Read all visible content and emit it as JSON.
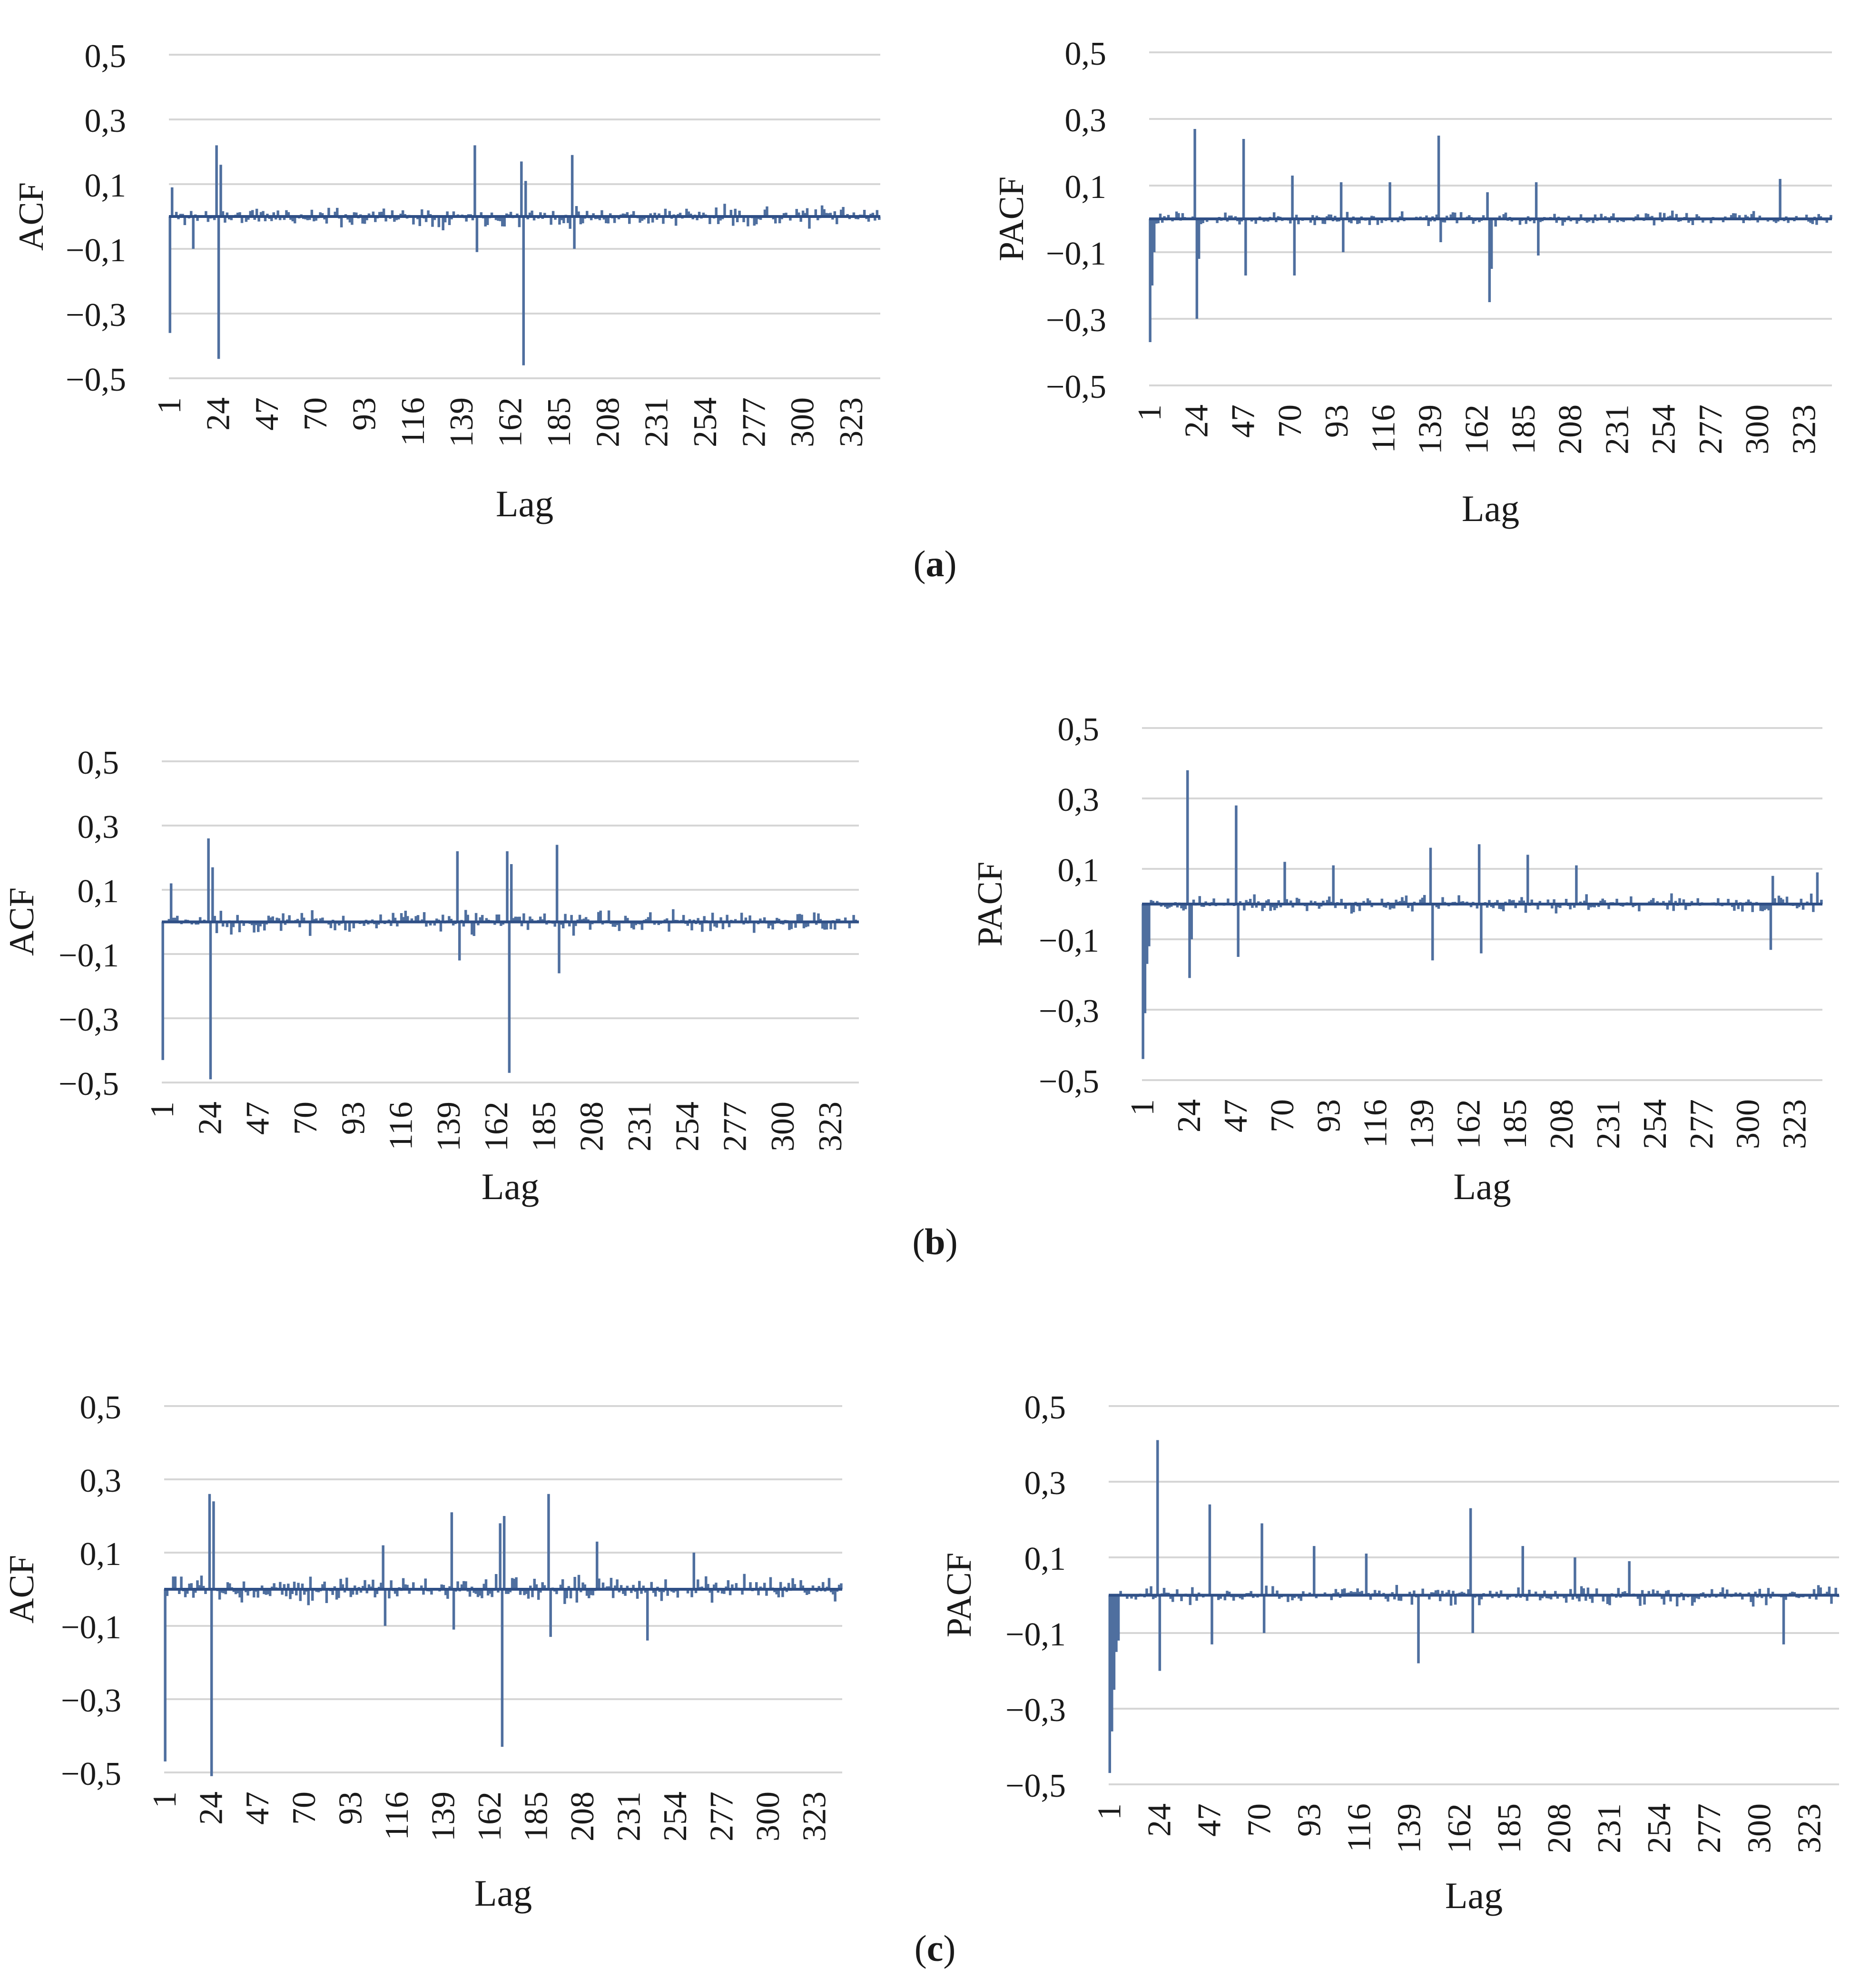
{
  "colors": {
    "bar": "#4f6f9f",
    "baseline": "#2f4f86",
    "grid": "#d6d6d6",
    "text": "#1a1a1a"
  },
  "captions": {
    "a": {
      "open": "(",
      "letter": "a",
      "close": ")"
    },
    "b": {
      "open": "(",
      "letter": "b",
      "close": ")"
    },
    "c": {
      "open": "(",
      "letter": "c",
      "close": ")"
    }
  },
  "chart_data": [
    {
      "id": "a-acf",
      "type": "bar",
      "ylabel": "ACF",
      "xlabel": "Lag",
      "yticks": [
        "0,5",
        "0,3",
        "0,1",
        "−0,1",
        "−0,3",
        "−0,5"
      ],
      "ylim": [
        -0.5,
        0.5
      ],
      "xticks": [
        "1",
        "24",
        "47",
        "70",
        "93",
        "116",
        "139",
        "162",
        "185",
        "208",
        "231",
        "254",
        "277",
        "300",
        "323"
      ],
      "n_lags": 336,
      "noise_amp": 0.045,
      "seed": 11,
      "spikes": [
        [
          1,
          -0.36
        ],
        [
          2,
          0.09
        ],
        [
          12,
          -0.1
        ],
        [
          23,
          0.22
        ],
        [
          24,
          -0.44
        ],
        [
          25,
          0.16
        ],
        [
          145,
          0.22
        ],
        [
          146,
          -0.11
        ],
        [
          167,
          0.17
        ],
        [
          168,
          -0.46
        ],
        [
          169,
          0.11
        ],
        [
          191,
          0.19
        ],
        [
          192,
          -0.1
        ]
      ]
    },
    {
      "id": "a-pacf",
      "type": "bar",
      "ylabel": "PACF",
      "xlabel": "Lag",
      "yticks": [
        "0,5",
        "0,3",
        "0,1",
        "−0,1",
        "−0,3",
        "−0,5"
      ],
      "ylim": [
        -0.5,
        0.5
      ],
      "xticks": [
        "1",
        "24",
        "47",
        "70",
        "93",
        "116",
        "139",
        "162",
        "185",
        "208",
        "231",
        "254",
        "277",
        "300",
        "323"
      ],
      "n_lags": 336,
      "noise_amp": 0.03,
      "seed": 23,
      "spikes": [
        [
          1,
          -0.37
        ],
        [
          2,
          -0.2
        ],
        [
          3,
          -0.1
        ],
        [
          23,
          0.27
        ],
        [
          24,
          -0.3
        ],
        [
          25,
          -0.12
        ],
        [
          47,
          0.24
        ],
        [
          48,
          -0.17
        ],
        [
          71,
          0.13
        ],
        [
          72,
          -0.17
        ],
        [
          95,
          0.11
        ],
        [
          96,
          -0.1
        ],
        [
          119,
          0.11
        ],
        [
          143,
          0.25
        ],
        [
          144,
          -0.07
        ],
        [
          167,
          0.08
        ],
        [
          168,
          -0.25
        ],
        [
          169,
          -0.15
        ],
        [
          191,
          0.11
        ],
        [
          192,
          -0.11
        ],
        [
          311,
          0.12
        ]
      ]
    },
    {
      "id": "b-acf",
      "type": "bar",
      "ylabel": "ACF",
      "xlabel": "Lag",
      "yticks": [
        "0,5",
        "0,3",
        "0,1",
        "−0,1",
        "−0,3",
        "−0,5"
      ],
      "ylim": [
        -0.5,
        0.5
      ],
      "xticks": [
        "1",
        "24",
        "47",
        "70",
        "93",
        "116",
        "139",
        "162",
        "185",
        "208",
        "231",
        "254",
        "277",
        "300",
        "323"
      ],
      "n_lags": 336,
      "noise_amp": 0.05,
      "seed": 37,
      "spikes": [
        [
          1,
          -0.43
        ],
        [
          5,
          0.12
        ],
        [
          23,
          0.26
        ],
        [
          24,
          -0.49
        ],
        [
          25,
          0.17
        ],
        [
          143,
          0.22
        ],
        [
          144,
          -0.12
        ],
        [
          167,
          0.22
        ],
        [
          168,
          -0.47
        ],
        [
          169,
          0.18
        ],
        [
          191,
          0.24
        ],
        [
          192,
          -0.16
        ]
      ]
    },
    {
      "id": "b-pacf",
      "type": "bar",
      "ylabel": "PACF",
      "xlabel": "Lag",
      "yticks": [
        "0,5",
        "0,3",
        "0,1",
        "−0,1",
        "−0,3",
        "−0,5"
      ],
      "ylim": [
        -0.5,
        0.5
      ],
      "xticks": [
        "1",
        "24",
        "47",
        "70",
        "93",
        "116",
        "139",
        "162",
        "185",
        "208",
        "231",
        "254",
        "277",
        "300",
        "323"
      ],
      "n_lags": 336,
      "noise_amp": 0.035,
      "seed": 41,
      "spikes": [
        [
          1,
          -0.44
        ],
        [
          2,
          -0.31
        ],
        [
          3,
          -0.17
        ],
        [
          4,
          -0.12
        ],
        [
          23,
          0.38
        ],
        [
          24,
          -0.21
        ],
        [
          25,
          -0.1
        ],
        [
          47,
          0.28
        ],
        [
          48,
          -0.15
        ],
        [
          71,
          0.12
        ],
        [
          95,
          0.11
        ],
        [
          143,
          0.16
        ],
        [
          144,
          -0.16
        ],
        [
          167,
          0.17
        ],
        [
          168,
          -0.14
        ],
        [
          191,
          0.14
        ],
        [
          215,
          0.11
        ],
        [
          311,
          -0.13
        ],
        [
          312,
          0.08
        ],
        [
          334,
          0.09
        ]
      ]
    },
    {
      "id": "c-acf",
      "type": "bar",
      "ylabel": "ACF",
      "xlabel": "Lag",
      "yticks": [
        "0,5",
        "0,3",
        "0,1",
        "−0,1",
        "−0,3",
        "−0,5"
      ],
      "ylim": [
        -0.5,
        0.5
      ],
      "xticks": [
        "1",
        "24",
        "47",
        "70",
        "93",
        "116",
        "139",
        "162",
        "185",
        "208",
        "231",
        "254",
        "277",
        "300",
        "323"
      ],
      "n_lags": 336,
      "noise_amp": 0.05,
      "seed": 53,
      "spikes": [
        [
          1,
          -0.47
        ],
        [
          23,
          0.26
        ],
        [
          24,
          -0.51
        ],
        [
          25,
          0.24
        ],
        [
          109,
          0.12
        ],
        [
          110,
          -0.1
        ],
        [
          143,
          0.21
        ],
        [
          144,
          -0.11
        ],
        [
          167,
          0.18
        ],
        [
          168,
          -0.43
        ],
        [
          169,
          0.2
        ],
        [
          191,
          0.26
        ],
        [
          192,
          -0.13
        ],
        [
          215,
          0.13
        ],
        [
          240,
          -0.14
        ],
        [
          263,
          0.1
        ]
      ]
    },
    {
      "id": "c-pacf",
      "type": "bar",
      "ylabel": "PACF",
      "xlabel": "Lag",
      "yticks": [
        "0,5",
        "0,3",
        "0,1",
        "−0,1",
        "−0,3",
        "−0,5"
      ],
      "ylim": [
        -0.5,
        0.5
      ],
      "xticks": [
        "1",
        "24",
        "47",
        "70",
        "93",
        "116",
        "139",
        "162",
        "185",
        "208",
        "231",
        "254",
        "277",
        "300",
        "323"
      ],
      "n_lags": 336,
      "noise_amp": 0.035,
      "seed": 67,
      "spikes": [
        [
          1,
          -0.47
        ],
        [
          2,
          -0.36
        ],
        [
          3,
          -0.25
        ],
        [
          4,
          -0.15
        ],
        [
          5,
          -0.12
        ],
        [
          23,
          0.41
        ],
        [
          24,
          -0.2
        ],
        [
          47,
          0.24
        ],
        [
          48,
          -0.13
        ],
        [
          71,
          0.19
        ],
        [
          72,
          -0.1
        ],
        [
          95,
          0.13
        ],
        [
          119,
          0.11
        ],
        [
          143,
          -0.18
        ],
        [
          167,
          0.23
        ],
        [
          168,
          -0.1
        ],
        [
          191,
          0.13
        ],
        [
          215,
          0.1
        ],
        [
          240,
          0.09
        ],
        [
          311,
          -0.13
        ]
      ]
    }
  ]
}
